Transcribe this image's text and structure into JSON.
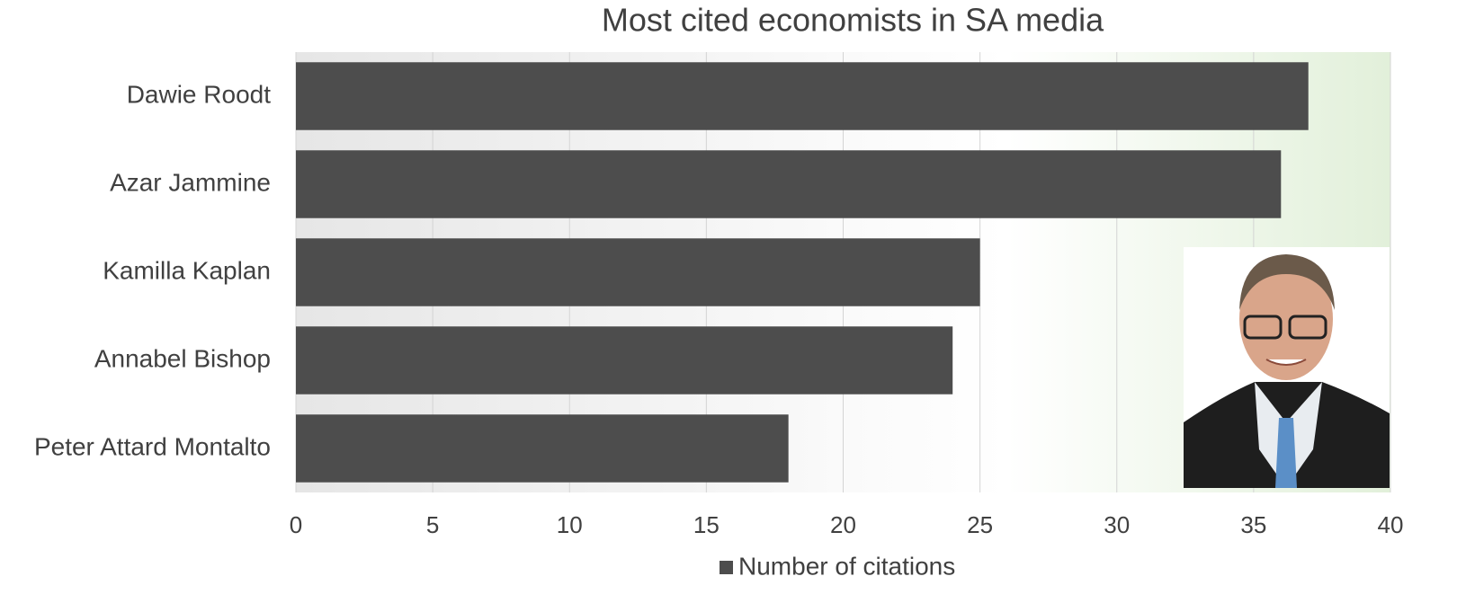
{
  "chart_data": {
    "type": "bar",
    "orientation": "horizontal",
    "title": "Most cited economists in SA media",
    "categories": [
      "Dawie Roodt",
      "Azar Jammine",
      "Kamilla Kaplan",
      "Annabel Bishop",
      "Peter Attard Montalto"
    ],
    "series": [
      {
        "name": "Number of citations",
        "color": "#4d4d4d",
        "values": [
          37,
          36,
          25,
          24,
          18
        ]
      }
    ],
    "xlim": [
      0,
      40
    ],
    "xticks": [
      0,
      5,
      10,
      15,
      20,
      25,
      30,
      35,
      40
    ],
    "grid": true,
    "legend": "bottom"
  }
}
